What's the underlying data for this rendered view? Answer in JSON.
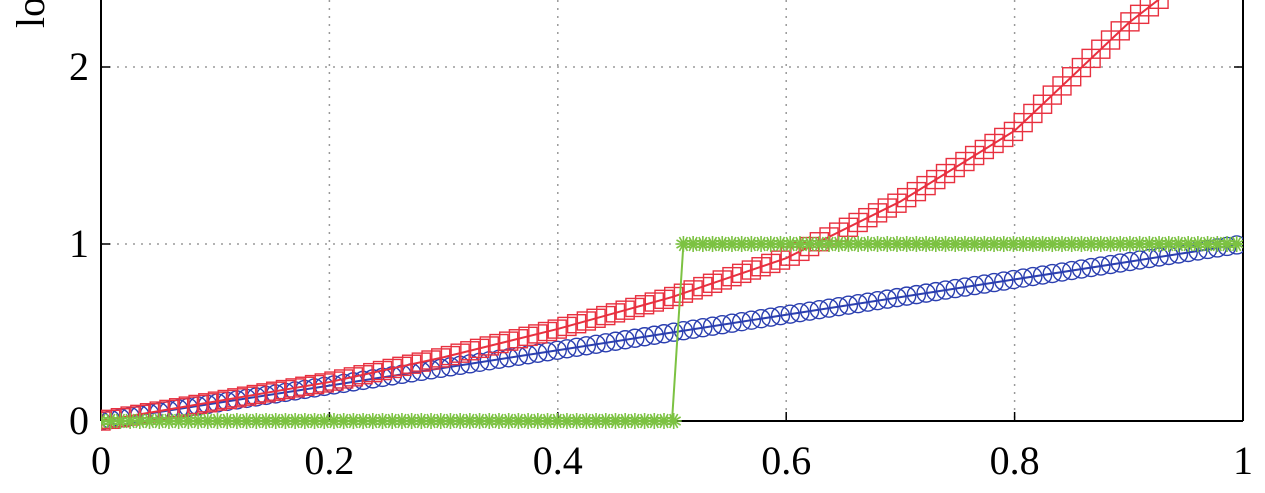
{
  "chart_data": {
    "type": "line",
    "xlim": [
      0,
      1
    ],
    "ylim_visible": [
      0,
      2.4
    ],
    "grid": true,
    "grid_style": "dotted",
    "x_ticks": [
      0,
      0.2,
      0.4,
      0.6,
      0.8,
      1
    ],
    "x_tick_labels": [
      "0",
      "0.2",
      "0.4",
      "0.6",
      "0.8",
      "1"
    ],
    "y_ticks": [
      0,
      1,
      2
    ],
    "y_tick_labels": [
      "0",
      "1",
      "2"
    ],
    "ylabel_visible_fragment": "lo",
    "series": [
      {
        "function": "linear y = x",
        "marker": "circle",
        "color": "#2b3fb0",
        "x": [
          0,
          0.1,
          0.2,
          0.3,
          0.4,
          0.5,
          0.6,
          0.7,
          0.8,
          0.9,
          1.0
        ],
        "y": [
          0,
          0.1,
          0.2,
          0.3,
          0.4,
          0.5,
          0.6,
          0.7,
          0.8,
          0.9,
          1.0
        ]
      },
      {
        "function": "increasing convex curve",
        "marker": "square",
        "color": "#e8303f",
        "x": [
          0,
          0.1,
          0.2,
          0.3,
          0.4,
          0.5,
          0.6,
          0.7,
          0.8,
          0.9,
          0.93
        ],
        "y": [
          0,
          0.11,
          0.22,
          0.36,
          0.52,
          0.7,
          0.92,
          1.24,
          1.64,
          2.25,
          2.4
        ]
      },
      {
        "function": "step at x = 0.5",
        "marker": "star",
        "color": "#7cc242",
        "x": [
          0,
          0.1,
          0.2,
          0.3,
          0.4,
          0.5,
          0.51,
          0.6,
          0.7,
          0.8,
          0.9,
          1.0
        ],
        "y": [
          0,
          0,
          0,
          0,
          0,
          0,
          1,
          1,
          1,
          1,
          1,
          1
        ]
      }
    ]
  }
}
